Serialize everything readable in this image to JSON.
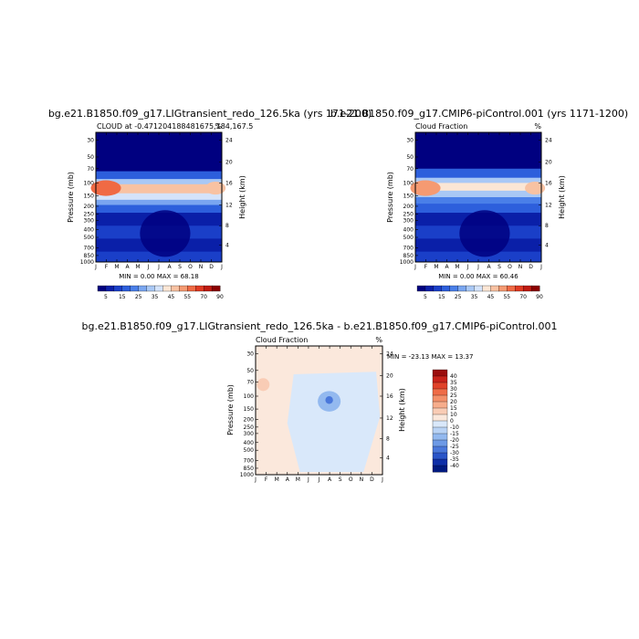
{
  "chart_data": [
    {
      "type": "heatmap",
      "title": "bg.e21.B1850.f09_g17.LIGtransient_redo_126.5ka (yrs 171-200)",
      "subtitle_left": "CLOUD at -0.471204188481675,184,167.5",
      "subtitle_right": "%",
      "xlabel": "",
      "ylabel": "Pressure (mb)",
      "ylabel_right": "Height (km)",
      "x_ticks": [
        "J",
        "F",
        "M",
        "A",
        "M",
        "J",
        "J",
        "A",
        "S",
        "O",
        "N",
        "D",
        "J"
      ],
      "y_ticks": [
        "30",
        "50",
        "70",
        "100",
        "150",
        "200",
        "250",
        "300",
        "400",
        "500",
        "700",
        "850",
        "1000"
      ],
      "y_ticks_right": [
        "24",
        "20",
        "16",
        "12",
        "8",
        "4"
      ],
      "stats": "MIN =   0.00 MAX =  68.18",
      "colorbar": {
        "labels": [
          "5",
          "15",
          "25",
          "35",
          "45",
          "55",
          "70",
          "90"
        ],
        "colors": [
          "#000080",
          "#0a1fa8",
          "#1a3fc8",
          "#2d5fdc",
          "#4a7fe8",
          "#7aa6f0",
          "#a9c8f5",
          "#d4e3fa",
          "#fbe6d5",
          "#f8c2a2",
          "#f59a72",
          "#f06a44",
          "#e03a22",
          "#c01a10",
          "#8b0000"
        ]
      },
      "levels": [
        5,
        10,
        15,
        20,
        25,
        30,
        35,
        40,
        45,
        50,
        55,
        60,
        70,
        80,
        90
      ],
      "field": "annual_cycle_cloud_fraction",
      "max_value": 68.18,
      "min_value": 0.0
    },
    {
      "type": "heatmap",
      "title": "b.e21.B1850.f09_g17.CMIP6-piControl.001 (yrs 1171-1200)",
      "subtitle_left": "Cloud Fraction",
      "subtitle_right": "%",
      "xlabel": "",
      "ylabel": "Pressure (mb)",
      "ylabel_right": "Height (km)",
      "x_ticks": [
        "J",
        "F",
        "M",
        "A",
        "M",
        "J",
        "J",
        "A",
        "S",
        "O",
        "N",
        "D",
        "J"
      ],
      "y_ticks": [
        "30",
        "50",
        "70",
        "100",
        "150",
        "200",
        "250",
        "300",
        "400",
        "500",
        "700",
        "850",
        "1000"
      ],
      "y_ticks_right": [
        "24",
        "20",
        "16",
        "12",
        "8",
        "4"
      ],
      "stats": "MIN =   0.00 MAX =  60.46",
      "colorbar": {
        "labels": [
          "5",
          "15",
          "25",
          "35",
          "45",
          "55",
          "70",
          "90"
        ],
        "colors": [
          "#000080",
          "#0a1fa8",
          "#1a3fc8",
          "#2d5fdc",
          "#4a7fe8",
          "#7aa6f0",
          "#a9c8f5",
          "#d4e3fa",
          "#fbe6d5",
          "#f8c2a2",
          "#f59a72",
          "#f06a44",
          "#e03a22",
          "#c01a10",
          "#8b0000"
        ]
      },
      "max_value": 60.46,
      "min_value": 0.0
    },
    {
      "type": "heatmap",
      "title": "bg.e21.B1850.f09_g17.LIGtransient_redo_126.5ka - b.e21.B1850.f09_g17.CMIP6-piControl.001",
      "subtitle_left": "Cloud Fraction",
      "subtitle_right": "%",
      "xlabel": "",
      "ylabel": "Pressure (mb)",
      "ylabel_right": "Height (km)",
      "x_ticks": [
        "J",
        "F",
        "M",
        "A",
        "M",
        "J",
        "J",
        "A",
        "S",
        "O",
        "N",
        "D",
        "J"
      ],
      "y_ticks": [
        "30",
        "50",
        "70",
        "100",
        "150",
        "200",
        "250",
        "300",
        "400",
        "500",
        "700",
        "850",
        "1000"
      ],
      "y_ticks_right": [
        "24",
        "20",
        "16",
        "12",
        "8",
        "4"
      ],
      "stats": "MIN = -23.13 MAX =  13.37",
      "colorbar": {
        "labels": [
          "40",
          "35",
          "30",
          "25",
          "20",
          "15",
          "10",
          "0",
          "-10",
          "-15",
          "-20",
          "-25",
          "-30",
          "-35",
          "-40"
        ],
        "colors": [
          "#9b0d0d",
          "#c8231b",
          "#e0432a",
          "#ef6c47",
          "#f4906a",
          "#f7ad8c",
          "#f9ccb5",
          "#fbe8dc",
          "#d9e8fa",
          "#b9d3f5",
          "#93b9ef",
          "#6d9ae6",
          "#4a78db",
          "#2a55c8",
          "#0e2fa8",
          "#001a80"
        ]
      },
      "max_value": 13.37,
      "min_value": -23.13
    }
  ]
}
